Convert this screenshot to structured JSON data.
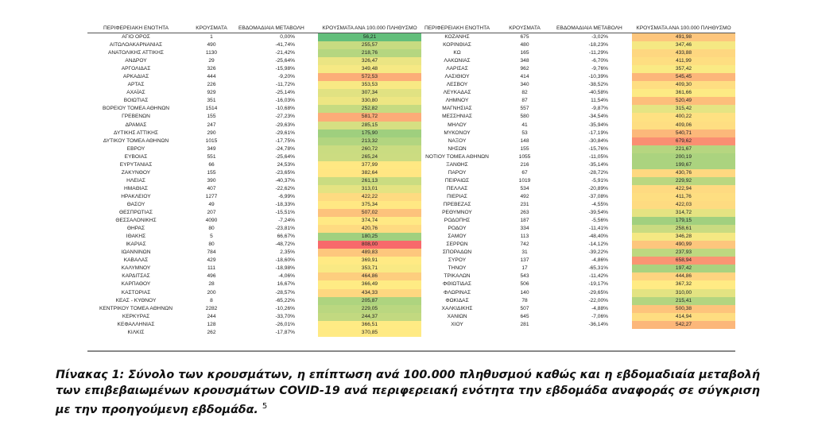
{
  "headers": {
    "left": [
      "ΠΕΡΙΦΕΡΕΙΑΚΗ ΕΝΟΤΗΤΑ",
      "ΚΡΟΥΣΜΑΤΑ",
      "ΕΒΔΟΜΑΔΙΑΙΑ ΜΕΤΑΒΟΛΗ",
      "ΚΡΟΥΣΜΑΤΑ ΑΝΑ 100.000 ΠΛΗΘΥΣΜΟ"
    ],
    "right": [
      "ΠΕΡΙΦΕΡΕΙΑΚΗ ΕΝΟΤΗΤΑ",
      "ΚΡΟΥΣΜΑΤΑ",
      "ΕΒΔΟΜΑΔΙΑΙΑ ΜΕΤΑΒΟΛΗ",
      "ΚΡΟΥΣΜΑΤΑ ΑΝΑ 100.000 ΠΛΗΘΥΣΜΟ"
    ]
  },
  "table": {
    "left": [
      [
        "ΑΓΙΟ ΟΡΟΣ",
        "1",
        "0,00%",
        "56,21"
      ],
      [
        "ΑΙΤΩΛΟΑΚΑΡΝΑΝΙΑΣ",
        "490",
        "-41,74%",
        "255,57"
      ],
      [
        "ΑΝΑΤΟΛΙΚΗΣ ΑΤΤΙΚΗΣ",
        "1130",
        "-21,42%",
        "218,76"
      ],
      [
        "ΑΝΔΡΟΥ",
        "29",
        "-25,64%",
        "326,47"
      ],
      [
        "ΑΡΓΟΛΙΔΑΣ",
        "326",
        "-15,98%",
        "349,48"
      ],
      [
        "ΑΡΚΑΔΙΑΣ",
        "444",
        "-9,20%",
        "572,53"
      ],
      [
        "ΑΡΤΑΣ",
        "226",
        "-11,72%",
        "353,53"
      ],
      [
        "ΑΧΑΪΑΣ",
        "929",
        "-25,14%",
        "307,34"
      ],
      [
        "ΒΟΙΩΤΙΑΣ",
        "351",
        "-16,03%",
        "330,80"
      ],
      [
        "ΒΟΡΕΙΟΥ ΤΟΜΕΑ ΑΘΗΝΩΝ",
        "1514",
        "-10,68%",
        "252,82"
      ],
      [
        "ΓΡΕΒΕΝΩΝ",
        "155",
        "-27,23%",
        "581,72"
      ],
      [
        "ΔΡΑΜΑΣ",
        "247",
        "-29,63%",
        "285,15"
      ],
      [
        "ΔΥΤΙΚΗΣ ΑΤΤΙΚΗΣ",
        "290",
        "-29,61%",
        "175,90"
      ],
      [
        "ΔΥΤΙΚΟΥ ΤΟΜΕΑ ΑΘΗΝΩΝ",
        "1015",
        "-17,75%",
        "213,32"
      ],
      [
        "ΕΒΡΟΥ",
        "349",
        "-24,78%",
        "260,72"
      ],
      [
        "ΕΥΒΟΙΑΣ",
        "551",
        "-25,64%",
        "265,24"
      ],
      [
        "ΕΥΡΥΤΑΝΙΑΣ",
        "66",
        "24,53%",
        "377,99"
      ],
      [
        "ΖΑΚΥΝΘΟΥ",
        "155",
        "-23,65%",
        "382,64"
      ],
      [
        "ΗΛΕΙΑΣ",
        "390",
        "-40,37%",
        "261,13"
      ],
      [
        "ΗΜΑΘΙΑΣ",
        "407",
        "-22,62%",
        "313,01"
      ],
      [
        "ΗΡΑΚΛΕΙΟΥ",
        "1277",
        "-6,99%",
        "422,22"
      ],
      [
        "ΘΑΣΟΥ",
        "49",
        "-18,33%",
        "375,34"
      ],
      [
        "ΘΕΣΠΡΩΤΙΑΣ",
        "207",
        "-15,51%",
        "507,02"
      ],
      [
        "ΘΕΣΣΑΛΟΝΙΚΗΣ",
        "4090",
        "-7,24%",
        "374,74"
      ],
      [
        "ΘΗΡΑΣ",
        "80",
        "-23,81%",
        "420,76"
      ],
      [
        "ΙΘΑΚΗΣ",
        "5",
        "66,67%",
        "180,25"
      ],
      [
        "ΙΚΑΡΙΑΣ",
        "80",
        "-48,72%",
        "808,00"
      ],
      [
        "ΙΩΑΝΝΙΝΩΝ",
        "784",
        "2,35%",
        "489,83"
      ],
      [
        "ΚΑΒΑΛΑΣ",
        "429",
        "-18,60%",
        "369,91"
      ],
      [
        "ΚΑΛΥΜΝΟΥ",
        "111",
        "-18,98%",
        "353,71"
      ],
      [
        "ΚΑΡΔΙΤΣΑΣ",
        "496",
        "-4,06%",
        "464,86"
      ],
      [
        "ΚΑΡΠΑΘΟΥ",
        "28",
        "16,67%",
        "366,49"
      ],
      [
        "ΚΑΣΤΟΡΙΑΣ",
        "200",
        "-28,57%",
        "434,33"
      ],
      [
        "ΚΕΑΣ - ΚΥΘΝΟΥ",
        "8",
        "-65,22%",
        "205,87"
      ],
      [
        "ΚΕΝΤΡΙΚΟΥ ΤΟΜΕΑ ΑΘΗΝΩΝ",
        "2282",
        "-10,26%",
        "229,05"
      ],
      [
        "ΚΕΡΚΥΡΑΣ",
        "244",
        "-33,70%",
        "244,37"
      ],
      [
        "ΚΕΦΑΛΛΗΝΙΑΣ",
        "128",
        "-26,01%",
        "366,51"
      ],
      [
        "ΚΙΛΚΙΣ",
        "262",
        "-17,87%",
        "370,85"
      ]
    ],
    "right": [
      [
        "ΚΟΖΑΝΗΣ",
        "675",
        "-3,02%",
        "491,98"
      ],
      [
        "ΚΟΡΙΝΘΙΑΣ",
        "480",
        "-18,23%",
        "347,46"
      ],
      [
        "ΚΩ",
        "165",
        "-11,29%",
        "433,88"
      ],
      [
        "ΛΑΚΩΝΙΑΣ",
        "348",
        "-6,70%",
        "411,99"
      ],
      [
        "ΛΑΡΙΣΑΣ",
        "962",
        "-9,76%",
        "357,42"
      ],
      [
        "ΛΑΣΙΘΙΟΥ",
        "414",
        "-10,39%",
        "545,45"
      ],
      [
        "ΛΕΣΒΟΥ",
        "340",
        "-38,52%",
        "409,30"
      ],
      [
        "ΛΕΥΚΑΔΑΣ",
        "82",
        "-40,58%",
        "361,66"
      ],
      [
        "ΛΗΜΝΟΥ",
        "87",
        "11,54%",
        "520,49"
      ],
      [
        "ΜΑΓΝΗΣΙΑΣ",
        "557",
        "-9,87%",
        "315,42"
      ],
      [
        "ΜΕΣΣΗΝΙΑΣ",
        "580",
        "-34,54%",
        "400,22"
      ],
      [
        "ΜΗΛΟΥ",
        "41",
        "-35,94%",
        "409,06"
      ],
      [
        "ΜΥΚΟΝΟΥ",
        "53",
        "-17,19%",
        "540,71"
      ],
      [
        "ΝΑΞΟΥ",
        "148",
        "-30,84%",
        "679,62"
      ],
      [
        "ΝΗΣΩΝ",
        "155",
        "-15,76%",
        "221,67"
      ],
      [
        "ΝΟΤΙΟΥ ΤΟΜΕΑ ΑΘΗΝΩΝ",
        "1055",
        "-11,05%",
        "200,19"
      ],
      [
        "ΞΑΝΘΗΣ",
        "216",
        "-35,14%",
        "199,67"
      ],
      [
        "ΠΑΡΟΥ",
        "67",
        "-28,72%",
        "430,76"
      ],
      [
        "ΠΕΙΡΑΙΩΣ",
        "1019",
        "-5,91%",
        "229,92"
      ],
      [
        "ΠΕΛΛΑΣ",
        "534",
        "-20,89%",
        "422,94"
      ],
      [
        "ΠΙΕΡΙΑΣ",
        "492",
        "-37,08%",
        "411,76"
      ],
      [
        "ΠΡΕΒΕΖΑΣ",
        "231",
        "-4,55%",
        "422,03"
      ],
      [
        "ΡΕΘΥΜΝΟΥ",
        "263",
        "-39,54%",
        "314,72"
      ],
      [
        "ΡΟΔΟΠΗΣ",
        "187",
        "-5,56%",
        "179,15"
      ],
      [
        "ΡΟΔΟΥ",
        "334",
        "-11,41%",
        "258,61"
      ],
      [
        "ΣΑΜΟΥ",
        "113",
        "-48,40%",
        "346,28"
      ],
      [
        "ΣΕΡΡΩΝ",
        "742",
        "-14,12%",
        "490,99"
      ],
      [
        "ΣΠΟΡΑΔΩΝ",
        "31",
        "-39,22%",
        "237,93"
      ],
      [
        "ΣΥΡΟΥ",
        "137",
        "-4,86%",
        "658,94"
      ],
      [
        "ΤΗΝΟΥ",
        "17",
        "-65,31%",
        "197,42"
      ],
      [
        "ΤΡΙΚΑΛΩΝ",
        "543",
        "-11,42%",
        "444,86"
      ],
      [
        "ΦΘΙΩΤΙΔΑΣ",
        "506",
        "-19,17%",
        "367,32"
      ],
      [
        "ΦΛΩΡΙΝΑΣ",
        "140",
        "-29,65%",
        "310,00"
      ],
      [
        "ΦΩΚΙΔΑΣ",
        "78",
        "-22,00%",
        "215,41"
      ],
      [
        "ΧΑΛΚΙΔΙΚΗΣ",
        "507",
        "-4,88%",
        "500,38"
      ],
      [
        "ΧΑΝΙΩΝ",
        "645",
        "-7,06%",
        "414,94"
      ],
      [
        "ΧΙΟΥ",
        "281",
        "-36,14%",
        "542,27"
      ]
    ]
  },
  "colors": {
    "low": "#63BE7B",
    "mid": "#FFEB84",
    "high": "#F8696B"
  },
  "caption": {
    "text": "Πίνακας 1: Σύνολο των κρουσμάτων, η επίπτωση ανά 100.000 πληθυσμού καθώς και η εβδομαδιαία μεταβολή των επιβεβαιωμένων κρουσμάτων COVID-19 ανά περιφερειακή ενότητα την εβδομάδα αναφοράς σε σύγκριση με την προηγούμενη εβδομάδα.",
    "footnote": "5"
  }
}
